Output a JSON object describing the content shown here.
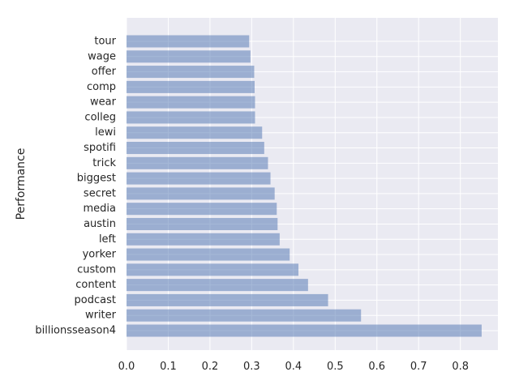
{
  "chart_data": {
    "type": "bar",
    "orientation": "horizontal",
    "title": "",
    "xlabel": "",
    "ylabel": "Performance",
    "xlim": [
      0,
      0.89
    ],
    "xticks": [
      0.0,
      0.1,
      0.2,
      0.3,
      0.4,
      0.5,
      0.6,
      0.7,
      0.8
    ],
    "xtick_labels": [
      "0.0",
      "0.1",
      "0.2",
      "0.3",
      "0.4",
      "0.5",
      "0.6",
      "0.7",
      "0.8"
    ],
    "grid": true,
    "categories": [
      "tour",
      "wage",
      "offer",
      "comp",
      "wear",
      "colleg",
      "lewi",
      "spotifi",
      "trick",
      "biggest",
      "secret",
      "media",
      "austin",
      "left",
      "yorker",
      "custom",
      "content",
      "podcast",
      "writer",
      "billionsseason4"
    ],
    "values": [
      0.294,
      0.297,
      0.306,
      0.307,
      0.308,
      0.308,
      0.325,
      0.33,
      0.339,
      0.345,
      0.355,
      0.36,
      0.362,
      0.367,
      0.391,
      0.412,
      0.435,
      0.483,
      0.562,
      0.851
    ],
    "colors": {
      "bar": "#4c72b0",
      "bar_opacity": 0.5,
      "plot_background": "#eaeaf2",
      "grid": "#ffffff",
      "text": "#262626"
    }
  }
}
